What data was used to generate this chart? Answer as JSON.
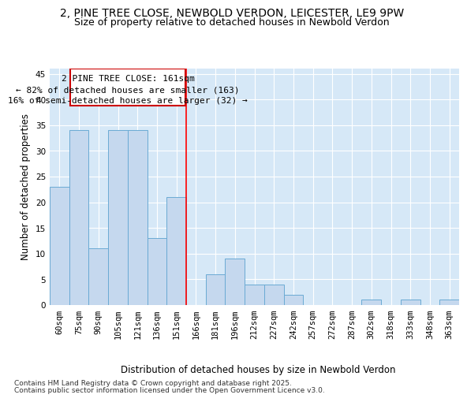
{
  "title1": "2, PINE TREE CLOSE, NEWBOLD VERDON, LEICESTER, LE9 9PW",
  "title2": "Size of property relative to detached houses in Newbold Verdon",
  "xlabel": "Distribution of detached houses by size in Newbold Verdon",
  "ylabel": "Number of detached properties",
  "categories": [
    "60sqm",
    "75sqm",
    "90sqm",
    "105sqm",
    "121sqm",
    "136sqm",
    "151sqm",
    "166sqm",
    "181sqm",
    "196sqm",
    "212sqm",
    "227sqm",
    "242sqm",
    "257sqm",
    "272sqm",
    "287sqm",
    "302sqm",
    "318sqm",
    "333sqm",
    "348sqm",
    "363sqm"
  ],
  "values": [
    23,
    34,
    11,
    34,
    34,
    13,
    21,
    0,
    6,
    9,
    4,
    4,
    2,
    0,
    0,
    0,
    1,
    0,
    1,
    0,
    1
  ],
  "bar_color": "#c5d8ee",
  "bar_edge_color": "#6aaad4",
  "reference_line_label": "2 PINE TREE CLOSE: 161sqm",
  "annotation_line1": "← 82% of detached houses are smaller (163)",
  "annotation_line2": "16% of semi-detached houses are larger (32) →",
  "annotation_box_edge_color": "#cc0000",
  "ylim": [
    0,
    46
  ],
  "yticks": [
    0,
    5,
    10,
    15,
    20,
    25,
    30,
    35,
    40,
    45
  ],
  "plot_bg_color": "#d6e8f7",
  "fig_bg_color": "#ffffff",
  "footer_line1": "Contains HM Land Registry data © Crown copyright and database right 2025.",
  "footer_line2": "Contains public sector information licensed under the Open Government Licence v3.0.",
  "title1_fontsize": 10,
  "title2_fontsize": 9,
  "axis_label_fontsize": 8.5,
  "tick_fontsize": 7.5,
  "annotation_fontsize": 8,
  "footer_fontsize": 6.5
}
